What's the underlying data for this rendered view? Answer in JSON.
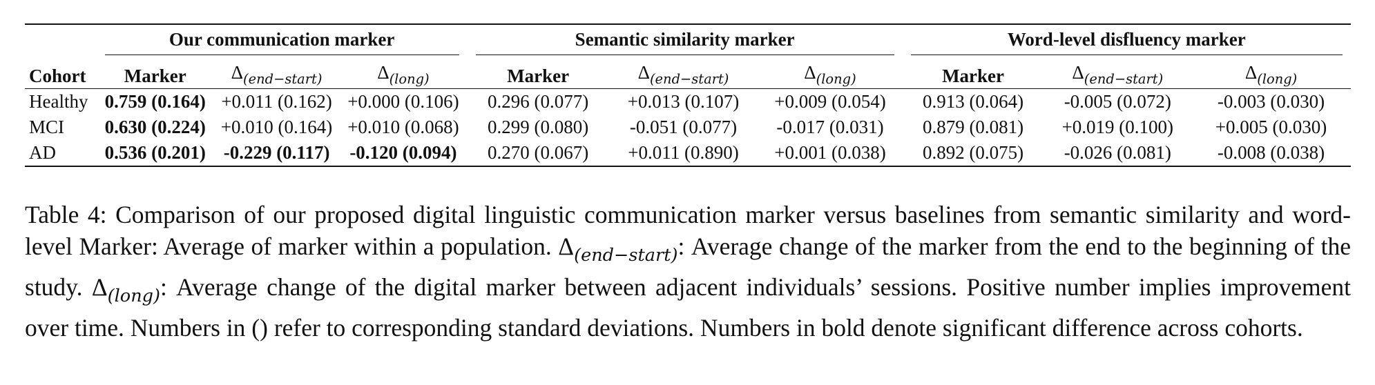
{
  "table": {
    "groups": [
      "Our communication marker",
      "Semantic similarity marker",
      "Word-level disfluency marker"
    ],
    "cohort_header": "Cohort",
    "sub_headers": {
      "marker": "Marker",
      "delta_symbol": "Δ",
      "end_start_sub": "(end−start)",
      "long_sub": "(long)"
    },
    "rows": [
      {
        "cohort": "Healthy",
        "cells": [
          "0.759 (0.164)",
          "+0.011 (0.162)",
          "+0.000 (0.106)",
          "0.296 (0.077)",
          "+0.013 (0.107)",
          "+0.009 (0.054)",
          "0.913 (0.064)",
          "-0.005 (0.072)",
          "-0.003 (0.030)"
        ],
        "bold": [
          true,
          false,
          false,
          false,
          false,
          false,
          false,
          false,
          false
        ]
      },
      {
        "cohort": "MCI",
        "cells": [
          "0.630 (0.224)",
          "+0.010 (0.164)",
          "+0.010 (0.068)",
          "0.299 (0.080)",
          "-0.051 (0.077)",
          "-0.017 (0.031)",
          "0.879 (0.081)",
          "+0.019 (0.100)",
          "+0.005 (0.030)"
        ],
        "bold": [
          true,
          false,
          false,
          false,
          false,
          false,
          false,
          false,
          false
        ]
      },
      {
        "cohort": "AD",
        "cells": [
          "0.536 (0.201)",
          "-0.229 (0.117)",
          "-0.120 (0.094)",
          "0.270 (0.067)",
          "+0.011 (0.890)",
          "+0.001 (0.038)",
          "0.892 (0.075)",
          "-0.026 (0.081)",
          "-0.008 (0.038)"
        ],
        "bold": [
          true,
          true,
          true,
          false,
          false,
          false,
          false,
          false,
          false
        ]
      }
    ]
  },
  "caption": {
    "part1": "Table 4: Comparison of our proposed digital linguistic communication marker versus baselines from semantic similarity and word-level Marker: Average of marker within a population. ",
    "delta1": "Δ",
    "sub1": "(end−start)",
    "part2": ": Average change of the marker from the end to the beginning of the study. ",
    "delta2": "Δ",
    "sub2": "(long)",
    "part3": ": Average change of the digital marker between adjacent individuals’ sessions. Positive number implies improvement over time. Numbers in () refer to corresponding standard deviations. Numbers in bold denote significant difference across cohorts."
  }
}
